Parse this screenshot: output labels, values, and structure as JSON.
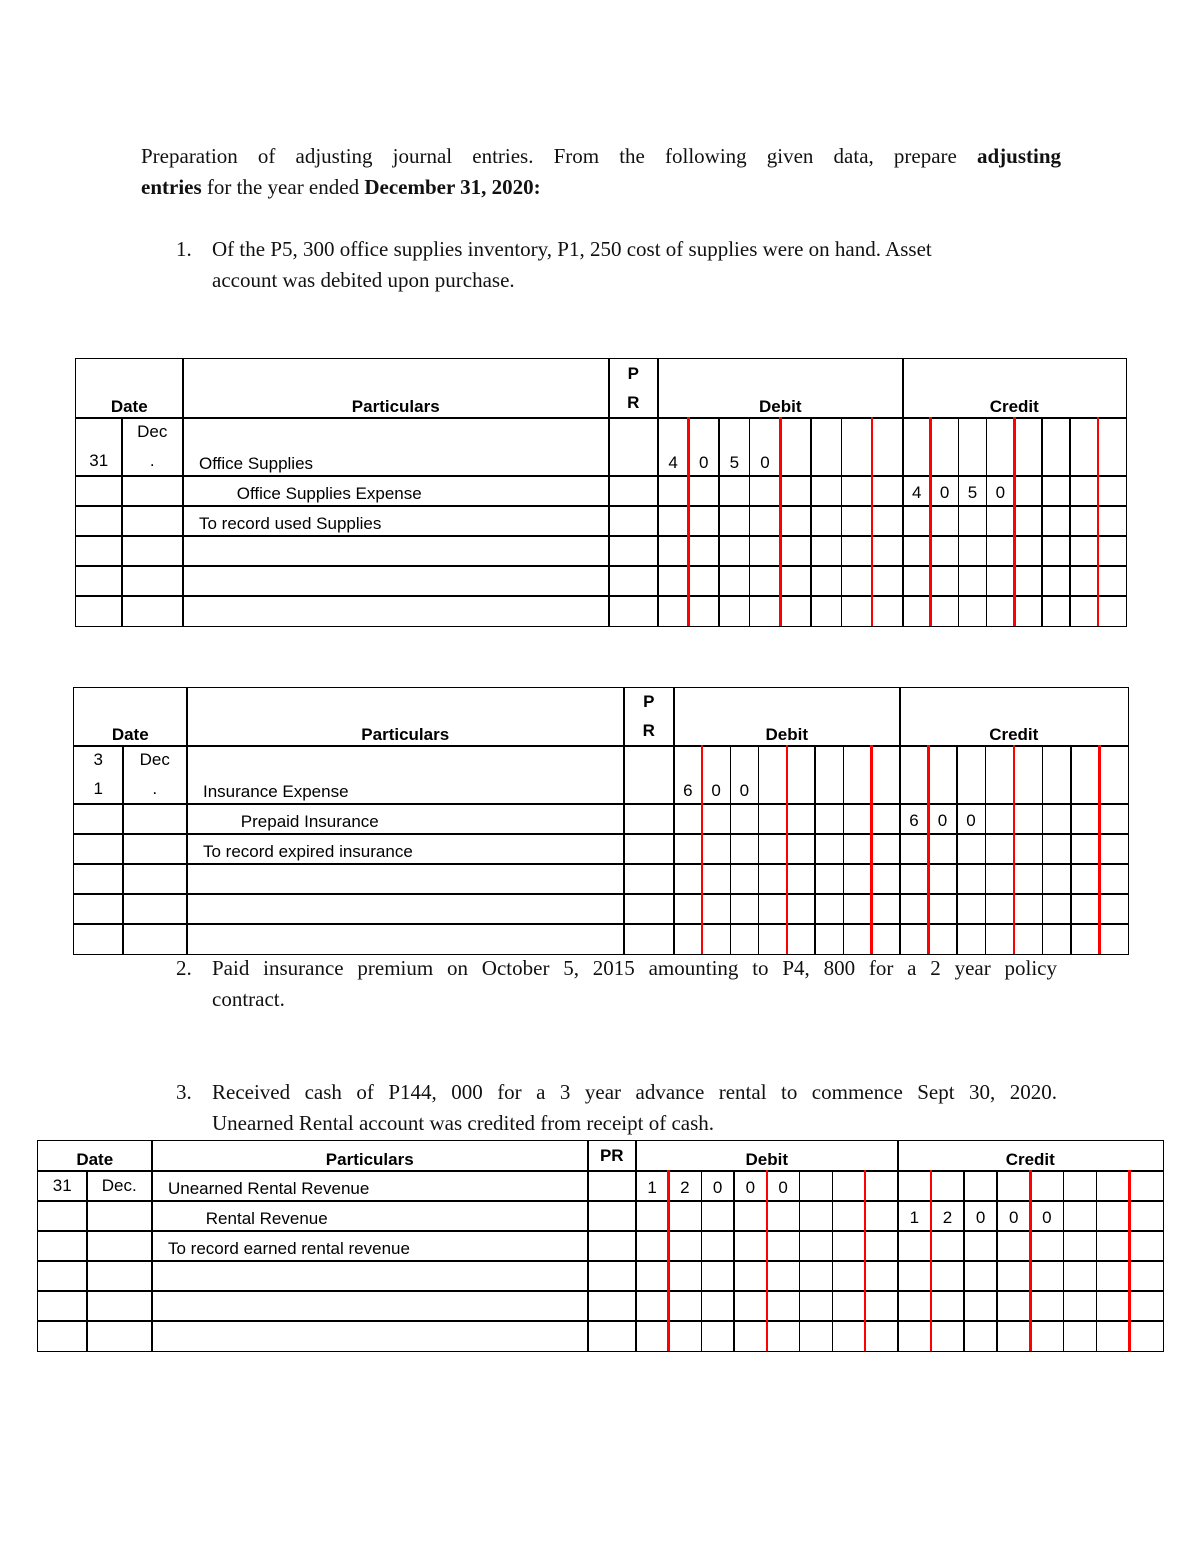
{
  "intro": {
    "part1": "Preparation of adjusting journal entries. From the following given data, prepare ",
    "bold1": "adjusting entries",
    "part2": " for the year ended ",
    "bold2": "December 31, 2020:"
  },
  "items": [
    {
      "num": "1.",
      "line1": "Of the P5, 300 office supplies inventory, P1, 250 cost of supplies were on hand. Asset",
      "line2": "account was debited upon purchase."
    },
    {
      "num": "2.",
      "line1": "Paid insurance premium on October 5, 2015 amounting to P4, 800 for a 2 year policy",
      "line2": "contract."
    },
    {
      "num": "3.",
      "line1": "Received cash of P144, 000 for a 3 year advance rental to commence Sept 30, 2020.",
      "line2": "Unearned Rental account was credited from receipt of cash."
    }
  ],
  "tables": [
    {
      "headers": {
        "date": "Date",
        "particulars": "Particulars",
        "pr": "P\nR",
        "debit": "Debit",
        "credit": "Credit"
      },
      "rows": [
        {
          "day": "31",
          "month": "Dec\n.",
          "particulars": "Office Supplies",
          "debit": [
            "4",
            "0",
            "5",
            "0"
          ],
          "credit": []
        },
        {
          "day": "",
          "month": "",
          "particulars": "        Office Supplies Expense",
          "debit": [],
          "credit": [
            "4",
            "0",
            "5",
            "0"
          ]
        },
        {
          "day": "",
          "month": "",
          "particulars": "To record used Supplies",
          "debit": [],
          "credit": []
        },
        {
          "day": "",
          "month": "",
          "particulars": "",
          "debit": [],
          "credit": []
        },
        {
          "day": "",
          "month": "",
          "particulars": "",
          "debit": [],
          "credit": []
        },
        {
          "day": "",
          "month": "",
          "particulars": "",
          "debit": [],
          "credit": []
        }
      ]
    },
    {
      "headers": {
        "date": "Date",
        "particulars": "Particulars",
        "pr": "P\nR",
        "debit": "Debit",
        "credit": "Credit"
      },
      "rows": [
        {
          "day": "3\n1",
          "month": "Dec\n.",
          "particulars": "Insurance Expense",
          "debit": [
            "6",
            "0",
            "0"
          ],
          "credit": []
        },
        {
          "day": "",
          "month": "",
          "particulars": "        Prepaid Insurance",
          "debit": [],
          "credit": [
            "6",
            "0",
            "0"
          ]
        },
        {
          "day": "",
          "month": "",
          "particulars": "To record expired insurance",
          "debit": [],
          "credit": []
        },
        {
          "day": "",
          "month": "",
          "particulars": "",
          "debit": [],
          "credit": []
        },
        {
          "day": "",
          "month": "",
          "particulars": "",
          "debit": [],
          "credit": []
        },
        {
          "day": "",
          "month": "",
          "particulars": "",
          "debit": [],
          "credit": []
        }
      ]
    },
    {
      "headers": {
        "date": "Date",
        "particulars": "Particulars",
        "pr": "PR",
        "debit": "Debit",
        "credit": "Credit"
      },
      "rows": [
        {
          "day": "31",
          "month": "Dec.",
          "particulars": "Unearned Rental Revenue",
          "debit": [
            "1",
            "2",
            "0",
            "0",
            "0"
          ],
          "credit": []
        },
        {
          "day": "",
          "month": "",
          "particulars": "        Rental Revenue",
          "debit": [],
          "credit": [
            "1",
            "2",
            "0",
            "0",
            "0"
          ]
        },
        {
          "day": "",
          "month": "",
          "particulars": "To record earned rental revenue",
          "debit": [],
          "credit": []
        },
        {
          "day": "",
          "month": "",
          "particulars": "",
          "debit": [],
          "credit": []
        },
        {
          "day": "",
          "month": "",
          "particulars": "",
          "debit": [],
          "credit": []
        },
        {
          "day": "",
          "month": "",
          "particulars": "",
          "debit": [],
          "credit": []
        }
      ]
    }
  ],
  "colors": {
    "rule_red": "#ff0000",
    "grid": "#000000"
  }
}
